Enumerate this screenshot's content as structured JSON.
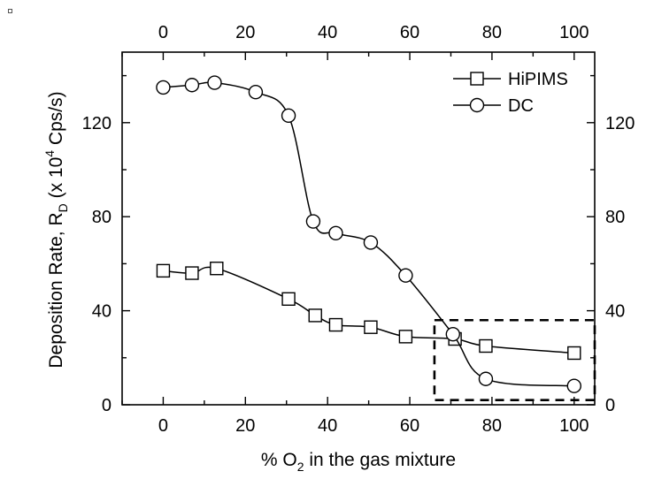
{
  "chart_data": {
    "type": "line",
    "ylabel": {
      "main": "Deposition Rate, R",
      "sub": "D",
      "unit_pre": " (x 10",
      "sup": "4",
      "unit_post": " Cps/s)"
    },
    "xlabel": {
      "pre": "% O",
      "sub": "2",
      "post": " in the gas mixture"
    },
    "xlim": [
      -10,
      105
    ],
    "ylim": [
      0,
      150
    ],
    "x_ticks": [
      0,
      20,
      40,
      60,
      80,
      100
    ],
    "x_tick_labels": [
      "0",
      "20",
      "40",
      "60",
      "80",
      "100"
    ],
    "y_ticks": [
      0,
      40,
      80,
      120
    ],
    "y_tick_labels": [
      "0",
      "40",
      "80",
      "120"
    ],
    "top_axis_tick_labels": [
      "0",
      "20",
      "40",
      "60",
      "80",
      "100"
    ],
    "right_axis_tick_labels": [
      "0",
      "40",
      "80",
      "120"
    ],
    "legend_position": "top-right",
    "series": [
      {
        "name": "HiPIMS",
        "marker": "square",
        "x": [
          0,
          7,
          13,
          30.5,
          37,
          42,
          50.5,
          59,
          71,
          78.5,
          100
        ],
        "y": [
          57,
          56,
          58,
          45,
          38,
          34,
          33,
          29,
          28,
          25,
          22
        ]
      },
      {
        "name": "DC",
        "marker": "circle",
        "x": [
          0,
          7,
          12.5,
          22.5,
          30.5,
          36.5,
          42,
          50.5,
          59,
          70.5,
          78.5,
          100
        ],
        "y": [
          135,
          136,
          137,
          133,
          123,
          78,
          73,
          69,
          55,
          30,
          11,
          8
        ]
      }
    ],
    "annotation": "dashed rectangle highlighting the region x 66 to 105, y 2 to 36"
  }
}
